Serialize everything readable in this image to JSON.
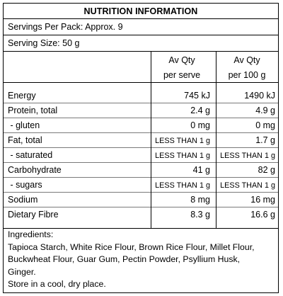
{
  "title": "NUTRITION INFORMATION",
  "servings_per_pack": "Servings Per Pack: Approx. 9",
  "serving_size": "Serving Size: 50 g",
  "columns": {
    "serve_line1": "Av Qty",
    "serve_line2": "per serve",
    "per100_line1": "Av Qty",
    "per100_line2": "per 100 g"
  },
  "rows": [
    {
      "name": "Energy",
      "serve": "745 kJ",
      "per100": "1490 kJ"
    },
    {
      "name": "Protein, total",
      "serve": "2.4 g",
      "per100": "4.9 g"
    },
    {
      "name": " - gluten",
      "serve": "0 mg",
      "per100": "0 mg"
    },
    {
      "name": "Fat, total",
      "serve": "LESS THAN 1 g",
      "per100": "1.7 g"
    },
    {
      "name": " - saturated",
      "serve": "LESS THAN 1 g",
      "per100": "LESS THAN 1 g"
    },
    {
      "name": "Carbohydrate",
      "serve": "41 g",
      "per100": "82 g"
    },
    {
      "name": " - sugars",
      "serve": "LESS THAN 1 g",
      "per100": "LESS THAN 1 g"
    },
    {
      "name": "Sodium",
      "serve": "8 mg",
      "per100": "16 mg"
    },
    {
      "name": "Dietary Fibre",
      "serve": "8.3 g",
      "per100": "16.6 g"
    }
  ],
  "ingredients": {
    "heading": "Ingredients:",
    "line1": "Tapioca Starch, White Rice Flour, Brown Rice Flour, Millet Flour,",
    "line2": "Buckwheat Flour, Guar Gum, Pectin Powder, Psyllium Husk,",
    "line3": "Ginger.",
    "storage": "Store in a cool, dry place."
  }
}
